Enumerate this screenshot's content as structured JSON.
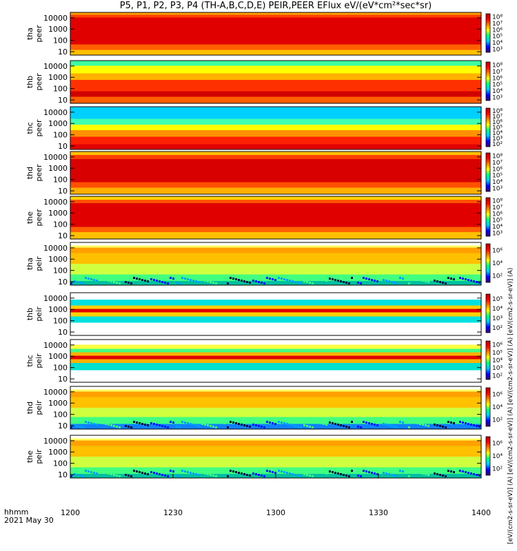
{
  "title": "P5, P1, P2, P3, P4 (TH-A,B,C,D,E) PEIR,PEER EFlux eV/(eV*cm²*sec*sr)",
  "units_label": "[eV/(cm2-s-sr-eV)] (A) [eV/(cm2-s-sr-eV)] (A) [eV/(cm2-s-sr-eV)] (A) [eV/(cm2-s-sr-eV)] (A)",
  "footer": {
    "time_label": "hhmm",
    "date_label": "2021 May 30"
  },
  "chart_data": {
    "type": "heatmap",
    "x_tick_labels": [
      "1200",
      "1230",
      "1300",
      "1330",
      "1400"
    ],
    "x_range": [
      "12:00",
      "14:00"
    ],
    "y_scale": "log",
    "y_range": [
      5,
      30000
    ],
    "y_tick_labels": [
      "10",
      "100",
      "1000",
      "10000"
    ],
    "colormap": [
      "#3a0070",
      "#0000ff",
      "#00c8ff",
      "#00ff80",
      "#ffff00",
      "#ff8000",
      "#ff0000",
      "#b00000"
    ],
    "panels": [
      {
        "label_top": "tha",
        "label_bottom": "peer",
        "colorbar_ticks": [
          "10³",
          "10⁴",
          "10⁵",
          "10⁶",
          "10⁷",
          "10⁸"
        ]
      },
      {
        "label_top": "thb",
        "label_bottom": "peer",
        "colorbar_ticks": [
          "10³",
          "10⁴",
          "10⁵",
          "10⁶",
          "10⁷",
          "10⁸"
        ]
      },
      {
        "label_top": "thc",
        "label_bottom": "peer",
        "colorbar_ticks": [
          "10²",
          "10³",
          "10⁴",
          "10⁵",
          "10⁶",
          "10⁷",
          "10⁸"
        ]
      },
      {
        "label_top": "thd",
        "label_bottom": "peer",
        "colorbar_ticks": [
          "10³",
          "10⁴",
          "10⁵",
          "10⁶",
          "10⁷",
          "10⁸"
        ]
      },
      {
        "label_top": "the",
        "label_bottom": "peer",
        "colorbar_ticks": [
          "10³",
          "10⁴",
          "10⁵",
          "10⁶",
          "10⁷",
          "10⁸"
        ]
      },
      {
        "label_top": "tha",
        "label_bottom": "peir",
        "colorbar_ticks": [
          "10²",
          "10⁴",
          "10⁶"
        ]
      },
      {
        "label_top": "thb",
        "label_bottom": "peir",
        "colorbar_ticks": [
          "10²",
          "10³",
          "10⁴",
          "10⁵"
        ]
      },
      {
        "label_top": "thc",
        "label_bottom": "peir",
        "colorbar_ticks": [
          "10²",
          "10³",
          "10⁴",
          "10⁵",
          "10⁶"
        ]
      },
      {
        "label_top": "thd",
        "label_bottom": "peir",
        "colorbar_ticks": [
          "10²",
          "10⁴",
          "10⁶"
        ]
      },
      {
        "label_top": "the",
        "label_bottom": "peir",
        "colorbar_ticks": [
          "10²",
          "10⁴",
          "10⁶"
        ]
      }
    ]
  }
}
